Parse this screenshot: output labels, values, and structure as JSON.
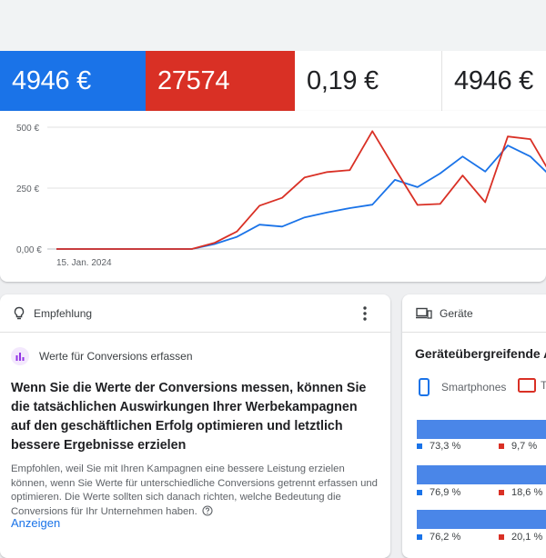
{
  "metrics": [
    {
      "value": "4946 €",
      "color": "#1a73e8"
    },
    {
      "value": "27574",
      "color": "#d93025"
    },
    {
      "value": "0,19 €"
    },
    {
      "value": "4946 €"
    }
  ],
  "chart_data": {
    "type": "line",
    "x_start_label": "15. Jan. 2024",
    "y_ticks": [
      "500 €",
      "250 €",
      "0,00 €"
    ],
    "ylim": [
      0,
      500
    ],
    "series": [
      {
        "color": "#1a73e8",
        "values": [
          0,
          0,
          0,
          0,
          0,
          0,
          0,
          20,
          50,
          100,
          92,
          130,
          150,
          168,
          182,
          284,
          254,
          310,
          380,
          318,
          425,
          380,
          290
        ]
      },
      {
        "color": "#d93025",
        "values": [
          0,
          0,
          0,
          0,
          0,
          0,
          0,
          25,
          72,
          178,
          210,
          294,
          316,
          324,
          484,
          330,
          181,
          185,
          302,
          192,
          462,
          451,
          292
        ]
      }
    ]
  },
  "recommendation": {
    "header": "Empfehlung",
    "title": "Werte für Conversions erfassen",
    "headline": "Wenn Sie die Werte der Conversions messen, können Sie die tatsächlichen Auswirkungen Ihrer Werbekampagnen auf den geschäftlichen Erfolg optimieren und letztlich bessere Ergebnisse erzielen",
    "body": "Empfohlen, weil Sie mit Ihren Kampagnen eine bessere Leistung erzielen können, wenn Sie Werte für unterschiedliche Conversions getrennt erfassen und optimieren. Die Werte sollten sich danach richten, welche Bedeutung die Conversions für Ihr Unternehmen haben.",
    "link": "Anzeigen"
  },
  "devices": {
    "header": "Geräte",
    "title": "Geräteübergreifende An",
    "legend_smartphones": "Smartphones",
    "legend_tablets": "T",
    "rows": [
      {
        "blue": "73,3 %",
        "red": "9,7 %"
      },
      {
        "blue": "76,9 %",
        "red": "18,6 %"
      },
      {
        "blue": "76,2 %",
        "red": "20,1 %"
      }
    ]
  }
}
